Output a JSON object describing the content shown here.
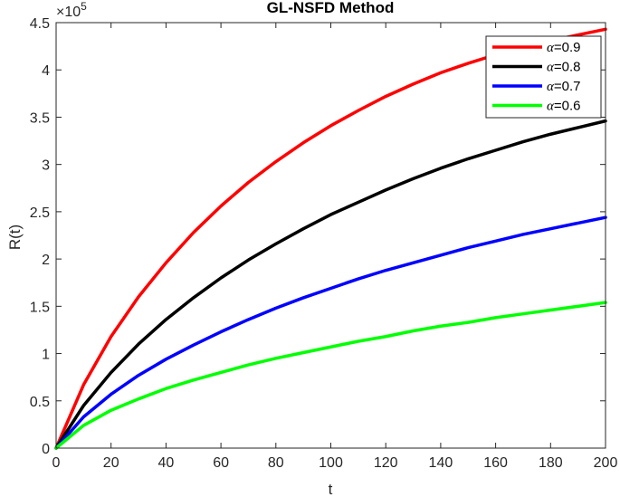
{
  "chart_data": {
    "type": "line",
    "title": "GL-NSFD Method",
    "xlabel": "t",
    "ylabel": "R(t)",
    "xlim": [
      0,
      200
    ],
    "ylim": [
      0,
      450000
    ],
    "x_ticks": [
      0,
      20,
      40,
      60,
      80,
      100,
      120,
      140,
      160,
      180,
      200
    ],
    "y_ticks": [
      0,
      50000,
      100000,
      150000,
      200000,
      250000,
      300000,
      350000,
      400000,
      450000
    ],
    "x_tick_labels": [
      "0",
      "20",
      "40",
      "60",
      "80",
      "100",
      "120",
      "140",
      "160",
      "180",
      "200"
    ],
    "y_tick_labels": [
      "0",
      "0.5",
      "1",
      "1.5",
      "2",
      "2.5",
      "3",
      "3.5",
      "4",
      "4.5"
    ],
    "y_exponent_label": "×10",
    "y_exponent_power": "5",
    "grid": false,
    "legend_position": "top-right",
    "x": [
      0,
      10,
      20,
      30,
      40,
      50,
      60,
      70,
      80,
      90,
      100,
      110,
      120,
      130,
      140,
      150,
      160,
      170,
      180,
      190,
      200
    ],
    "series": [
      {
        "name": "α=0.9",
        "label_symbol": "α",
        "label_value": "=0.9",
        "color": "#ff0000",
        "values": [
          0,
          67000,
          118000,
          160000,
          196000,
          228000,
          256000,
          281000,
          303000,
          323000,
          341000,
          357000,
          372000,
          385000,
          397000,
          407000,
          416000,
          424000,
          431000,
          437000,
          443000
        ]
      },
      {
        "name": "α=0.8",
        "label_symbol": "α",
        "label_value": "=0.8",
        "color": "#000000",
        "values": [
          0,
          45000,
          80000,
          110000,
          136000,
          159000,
          180000,
          199000,
          216000,
          232000,
          247000,
          260000,
          273000,
          285000,
          296000,
          306000,
          315000,
          324000,
          332000,
          339000,
          346000
        ]
      },
      {
        "name": "α=0.7",
        "label_symbol": "α",
        "label_value": "=0.7",
        "color": "#0000ff",
        "values": [
          0,
          33000,
          57000,
          77000,
          94000,
          109000,
          123000,
          136000,
          148000,
          159000,
          169000,
          179000,
          188000,
          196000,
          204000,
          212000,
          219000,
          226000,
          232000,
          238000,
          244000
        ]
      },
      {
        "name": "α=0.6",
        "label_symbol": "α",
        "label_value": "=0.6",
        "color": "#00ff00",
        "values": [
          0,
          24000,
          40000,
          52000,
          63000,
          72000,
          80000,
          88000,
          95000,
          101000,
          107000,
          113000,
          118000,
          124000,
          129000,
          133000,
          138000,
          142000,
          146000,
          150000,
          154000
        ]
      }
    ]
  }
}
